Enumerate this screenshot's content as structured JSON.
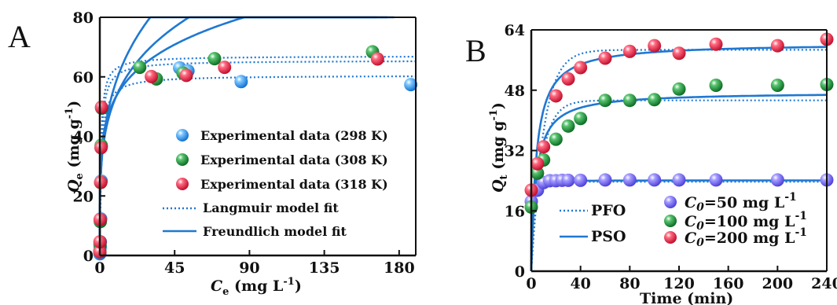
{
  "chart_data": [
    {
      "type": "scatter",
      "panel_label": "A",
      "xlabel_italic": "C",
      "xlabel_sub": "e",
      "xlabel_unit": " (mg L",
      "xlabel_sup": "-1",
      "xlabel_close": ")",
      "ylabel_italic": "Q",
      "ylabel_sub": "e",
      "ylabel_unit": " (mg g",
      "ylabel_sup": "-1",
      "ylabel_close": ")",
      "xlim": [
        0,
        190
      ],
      "ylim": [
        0,
        80
      ],
      "xticks": [
        "0",
        "45",
        "90",
        "135",
        "180"
      ],
      "xtick_values": [
        0,
        45,
        90,
        135,
        180
      ],
      "yticks": [
        "0",
        "20",
        "40",
        "60",
        "80"
      ],
      "ytick_values": [
        0,
        20,
        40,
        60,
        80
      ],
      "legend_position": "bottom-right",
      "series": [
        {
          "name": "Experimental data (298 K)",
          "color": "#1f8fe0",
          "points": [
            [
              0,
              0.6
            ],
            [
              0,
              1.6
            ],
            [
              0.2,
              2.9
            ],
            [
              0.3,
              4.6
            ],
            [
              0.5,
              12.3
            ],
            [
              0.8,
              25
            ],
            [
              0.9,
              36.6
            ],
            [
              1.2,
              49.5
            ],
            [
              48,
              63
            ],
            [
              53,
              62
            ],
            [
              85,
              58.4
            ],
            [
              187,
              57.4
            ]
          ]
        },
        {
          "name": "Experimental data (308 K)",
          "color": "#179b3a",
          "points": [
            [
              0,
              1.4
            ],
            [
              0.1,
              3.6
            ],
            [
              0.3,
              11.4
            ],
            [
              0.5,
              24.5
            ],
            [
              0.8,
              37
            ],
            [
              1.1,
              49.5
            ],
            [
              24,
              63.2
            ],
            [
              34,
              59.3
            ],
            [
              50,
              61.3
            ],
            [
              69,
              66.1
            ],
            [
              164,
              68.4
            ]
          ]
        },
        {
          "name": "Experimental data (318 K)",
          "color": "#e11a3a",
          "points": [
            [
              0,
              1.2
            ],
            [
              0.1,
              4.6
            ],
            [
              0.2,
              12.1
            ],
            [
              0.5,
              24.6
            ],
            [
              0.7,
              36.2
            ],
            [
              1,
              49.8
            ],
            [
              31,
              60.1
            ],
            [
              52,
              60.5
            ],
            [
              75,
              63.2
            ],
            [
              167,
              66
            ]
          ]
        }
      ],
      "fits": [
        {
          "name": "Langmuir model fit",
          "style": "dotted",
          "color": "#1f78d2",
          "curves": [
            {
              "qm": 60.5,
              "kl": 1.0
            },
            {
              "qm": 65.5,
              "kl": 1.2
            },
            {
              "qm": 67.0,
              "kl": 1.5
            }
          ]
        },
        {
          "name": "Freundlich model fit",
          "style": "solid",
          "color": "#1f78d2",
          "curves": [
            {
              "kf": 35,
              "n": 5.4,
              "xmax": 167
            },
            {
              "kf": 31,
              "n": 4.2,
              "xmax": 177
            },
            {
              "kf": 31,
              "n": 3.6,
              "xmax": 173
            }
          ]
        }
      ]
    },
    {
      "type": "scatter",
      "panel_label": "B",
      "xlabel": "Time (min)",
      "ylabel_italic": "Q",
      "ylabel_sub": "t",
      "ylabel_unit": " (mg g",
      "ylabel_sup": "-1",
      "ylabel_close": ")",
      "xlim": [
        0,
        240
      ],
      "ylim": [
        0,
        64
      ],
      "xticks": [
        "0",
        "40",
        "80",
        "120",
        "160",
        "200",
        "240"
      ],
      "xtick_values": [
        0,
        40,
        80,
        120,
        160,
        200,
        240
      ],
      "yticks": [
        "0",
        "16",
        "32",
        "48",
        "64"
      ],
      "ytick_values": [
        0,
        16,
        32,
        48,
        64
      ],
      "legend_position": "bottom",
      "series": [
        {
          "name_italic": "C",
          "name_sub": "0",
          "name_rest": "=50 mg L",
          "name_sup": "-1",
          "color": "#6a5cf0",
          "points": [
            [
              0,
              18.5
            ],
            [
              5,
              21.5
            ],
            [
              10,
              23.5
            ],
            [
              15,
              24
            ],
            [
              20,
              24
            ],
            [
              25,
              24.1
            ],
            [
              30,
              24.1
            ],
            [
              40,
              24.1
            ],
            [
              60,
              24.2
            ],
            [
              80,
              24.2
            ],
            [
              100,
              24.2
            ],
            [
              120,
              24.2
            ],
            [
              150,
              24.2
            ],
            [
              200,
              24.2
            ],
            [
              240,
              24.2
            ]
          ]
        },
        {
          "name_italic": "C",
          "name_sub": "0",
          "name_rest": "=100 mg L",
          "name_sup": "-1",
          "color": "#179b3a",
          "points": [
            [
              0,
              17
            ],
            [
              5,
              26
            ],
            [
              10,
              29.5
            ],
            [
              20,
              35
            ],
            [
              30,
              38.5
            ],
            [
              40,
              40.5
            ],
            [
              60,
              45.3
            ],
            [
              80,
              45.3
            ],
            [
              100,
              45.5
            ],
            [
              120,
              48.3
            ],
            [
              150,
              49.3
            ],
            [
              200,
              49.3
            ],
            [
              240,
              49.5
            ]
          ]
        },
        {
          "name_italic": "C",
          "name_sub": "0",
          "name_rest": "=200 mg L",
          "name_sup": "-1",
          "color": "#e11a3a",
          "points": [
            [
              0,
              21.5
            ],
            [
              5,
              28.5
            ],
            [
              10,
              33
            ],
            [
              20,
              46.5
            ],
            [
              30,
              51
            ],
            [
              40,
              54
            ],
            [
              60,
              56.5
            ],
            [
              80,
              58.3
            ],
            [
              100,
              59.8
            ],
            [
              120,
              57.8
            ],
            [
              150,
              60.2
            ],
            [
              200,
              59.8
            ],
            [
              240,
              61.5
            ]
          ]
        }
      ],
      "fits": [
        {
          "name": "PFO",
          "style": "dotted",
          "color": "#1f78d2",
          "curves": [
            {
              "qe": 23.7,
              "k": 0.5
            },
            {
              "qe": 45.3,
              "k": 0.12
            },
            {
              "qe": 58.7,
              "k": 0.1
            }
          ]
        },
        {
          "name": "PSO",
          "style": "solid",
          "color": "#1f78d2",
          "curves": [
            {
              "qe": 24.1,
              "k": 0.2
            },
            {
              "qe": 47.5,
              "k": 0.0055
            },
            {
              "qe": 60.5,
              "k": 0.004
            }
          ]
        }
      ]
    }
  ]
}
